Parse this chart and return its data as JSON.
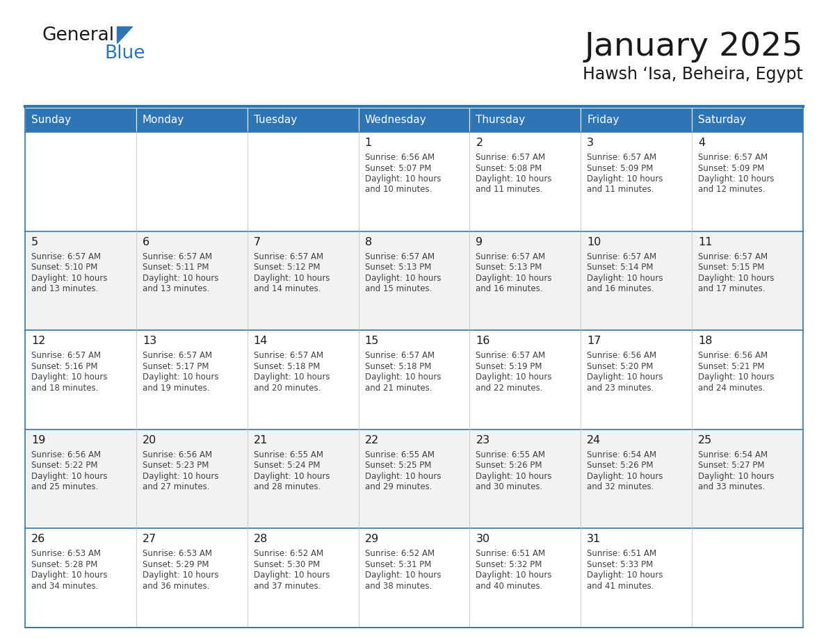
{
  "title": "January 2025",
  "subtitle": "Hawsh ‘Isa, Beheira, Egypt",
  "header_bg": "#2E75B6",
  "header_text_color": "#FFFFFF",
  "day_names": [
    "Sunday",
    "Monday",
    "Tuesday",
    "Wednesday",
    "Thursday",
    "Friday",
    "Saturday"
  ],
  "alt_row_color": "#F2F2F2",
  "white_row_color": "#FFFFFF",
  "border_color": "#2E75B6",
  "cell_text_color": "#404040",
  "day_number_color": "#1A1A1A",
  "title_color": "#1A1A1A",
  "subtitle_color": "#1A1A1A",
  "logo_general_color": "#1A1A1A",
  "logo_blue_color": "#2E75B6",
  "logo_triangle_color": "#2E75B6",
  "calendar_data": [
    [
      {
        "day": "",
        "sunrise": "",
        "sunset": "",
        "daylight_hours": "",
        "daylight_minutes": ""
      },
      {
        "day": "",
        "sunrise": "",
        "sunset": "",
        "daylight_hours": "",
        "daylight_minutes": ""
      },
      {
        "day": "",
        "sunrise": "",
        "sunset": "",
        "daylight_hours": "",
        "daylight_minutes": ""
      },
      {
        "day": "1",
        "sunrise": "6:56 AM",
        "sunset": "5:07 PM",
        "daylight_hours": "10",
        "daylight_minutes": "10"
      },
      {
        "day": "2",
        "sunrise": "6:57 AM",
        "sunset": "5:08 PM",
        "daylight_hours": "10",
        "daylight_minutes": "11"
      },
      {
        "day": "3",
        "sunrise": "6:57 AM",
        "sunset": "5:09 PM",
        "daylight_hours": "10",
        "daylight_minutes": "11"
      },
      {
        "day": "4",
        "sunrise": "6:57 AM",
        "sunset": "5:09 PM",
        "daylight_hours": "10",
        "daylight_minutes": "12"
      }
    ],
    [
      {
        "day": "5",
        "sunrise": "6:57 AM",
        "sunset": "5:10 PM",
        "daylight_hours": "10",
        "daylight_minutes": "13"
      },
      {
        "day": "6",
        "sunrise": "6:57 AM",
        "sunset": "5:11 PM",
        "daylight_hours": "10",
        "daylight_minutes": "13"
      },
      {
        "day": "7",
        "sunrise": "6:57 AM",
        "sunset": "5:12 PM",
        "daylight_hours": "10",
        "daylight_minutes": "14"
      },
      {
        "day": "8",
        "sunrise": "6:57 AM",
        "sunset": "5:13 PM",
        "daylight_hours": "10",
        "daylight_minutes": "15"
      },
      {
        "day": "9",
        "sunrise": "6:57 AM",
        "sunset": "5:13 PM",
        "daylight_hours": "10",
        "daylight_minutes": "16"
      },
      {
        "day": "10",
        "sunrise": "6:57 AM",
        "sunset": "5:14 PM",
        "daylight_hours": "10",
        "daylight_minutes": "16"
      },
      {
        "day": "11",
        "sunrise": "6:57 AM",
        "sunset": "5:15 PM",
        "daylight_hours": "10",
        "daylight_minutes": "17"
      }
    ],
    [
      {
        "day": "12",
        "sunrise": "6:57 AM",
        "sunset": "5:16 PM",
        "daylight_hours": "10",
        "daylight_minutes": "18"
      },
      {
        "day": "13",
        "sunrise": "6:57 AM",
        "sunset": "5:17 PM",
        "daylight_hours": "10",
        "daylight_minutes": "19"
      },
      {
        "day": "14",
        "sunrise": "6:57 AM",
        "sunset": "5:18 PM",
        "daylight_hours": "10",
        "daylight_minutes": "20"
      },
      {
        "day": "15",
        "sunrise": "6:57 AM",
        "sunset": "5:18 PM",
        "daylight_hours": "10",
        "daylight_minutes": "21"
      },
      {
        "day": "16",
        "sunrise": "6:57 AM",
        "sunset": "5:19 PM",
        "daylight_hours": "10",
        "daylight_minutes": "22"
      },
      {
        "day": "17",
        "sunrise": "6:56 AM",
        "sunset": "5:20 PM",
        "daylight_hours": "10",
        "daylight_minutes": "23"
      },
      {
        "day": "18",
        "sunrise": "6:56 AM",
        "sunset": "5:21 PM",
        "daylight_hours": "10",
        "daylight_minutes": "24"
      }
    ],
    [
      {
        "day": "19",
        "sunrise": "6:56 AM",
        "sunset": "5:22 PM",
        "daylight_hours": "10",
        "daylight_minutes": "25"
      },
      {
        "day": "20",
        "sunrise": "6:56 AM",
        "sunset": "5:23 PM",
        "daylight_hours": "10",
        "daylight_minutes": "27"
      },
      {
        "day": "21",
        "sunrise": "6:55 AM",
        "sunset": "5:24 PM",
        "daylight_hours": "10",
        "daylight_minutes": "28"
      },
      {
        "day": "22",
        "sunrise": "6:55 AM",
        "sunset": "5:25 PM",
        "daylight_hours": "10",
        "daylight_minutes": "29"
      },
      {
        "day": "23",
        "sunrise": "6:55 AM",
        "sunset": "5:26 PM",
        "daylight_hours": "10",
        "daylight_minutes": "30"
      },
      {
        "day": "24",
        "sunrise": "6:54 AM",
        "sunset": "5:26 PM",
        "daylight_hours": "10",
        "daylight_minutes": "32"
      },
      {
        "day": "25",
        "sunrise": "6:54 AM",
        "sunset": "5:27 PM",
        "daylight_hours": "10",
        "daylight_minutes": "33"
      }
    ],
    [
      {
        "day": "26",
        "sunrise": "6:53 AM",
        "sunset": "5:28 PM",
        "daylight_hours": "10",
        "daylight_minutes": "34"
      },
      {
        "day": "27",
        "sunrise": "6:53 AM",
        "sunset": "5:29 PM",
        "daylight_hours": "10",
        "daylight_minutes": "36"
      },
      {
        "day": "28",
        "sunrise": "6:52 AM",
        "sunset": "5:30 PM",
        "daylight_hours": "10",
        "daylight_minutes": "37"
      },
      {
        "day": "29",
        "sunrise": "6:52 AM",
        "sunset": "5:31 PM",
        "daylight_hours": "10",
        "daylight_minutes": "38"
      },
      {
        "day": "30",
        "sunrise": "6:51 AM",
        "sunset": "5:32 PM",
        "daylight_hours": "10",
        "daylight_minutes": "40"
      },
      {
        "day": "31",
        "sunrise": "6:51 AM",
        "sunset": "5:33 PM",
        "daylight_hours": "10",
        "daylight_minutes": "41"
      },
      {
        "day": "",
        "sunrise": "",
        "sunset": "",
        "daylight_hours": "",
        "daylight_minutes": ""
      }
    ]
  ]
}
